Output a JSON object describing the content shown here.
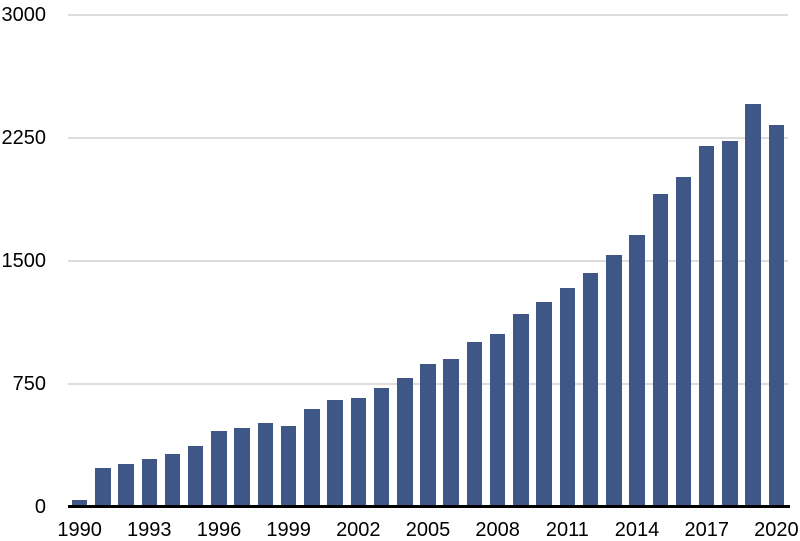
{
  "chart_data": {
    "type": "bar",
    "title": "",
    "xlabel": "",
    "ylabel": "",
    "categories": [
      "1990",
      "1991",
      "1992",
      "1993",
      "1994",
      "1995",
      "1996",
      "1997",
      "1998",
      "1999",
      "2000",
      "2001",
      "2002",
      "2003",
      "2004",
      "2005",
      "2006",
      "2007",
      "2008",
      "2009",
      "2010",
      "2011",
      "2012",
      "2013",
      "2014",
      "2015",
      "2016",
      "2017",
      "2018",
      "2019",
      "2020"
    ],
    "values": [
      45,
      235,
      260,
      295,
      325,
      370,
      465,
      480,
      515,
      495,
      600,
      655,
      665,
      725,
      785,
      870,
      905,
      1005,
      1055,
      1175,
      1250,
      1335,
      1425,
      1535,
      1660,
      1910,
      2015,
      2200,
      2230,
      2455,
      2330
    ],
    "ylim": [
      0,
      3000
    ],
    "y_ticks": [
      0,
      750,
      1500,
      2250,
      3000
    ],
    "x_tick_labels": [
      "1990",
      "1993",
      "1996",
      "1999",
      "2002",
      "2005",
      "2008",
      "2011",
      "2014",
      "2017",
      "2020"
    ],
    "grid": "horizontal",
    "legend": null,
    "colors": {
      "bar": "#3E5786",
      "gridline": "#DDDDDD",
      "axis": "#000000",
      "text": "#000000",
      "background": "#FFFFFF"
    }
  }
}
